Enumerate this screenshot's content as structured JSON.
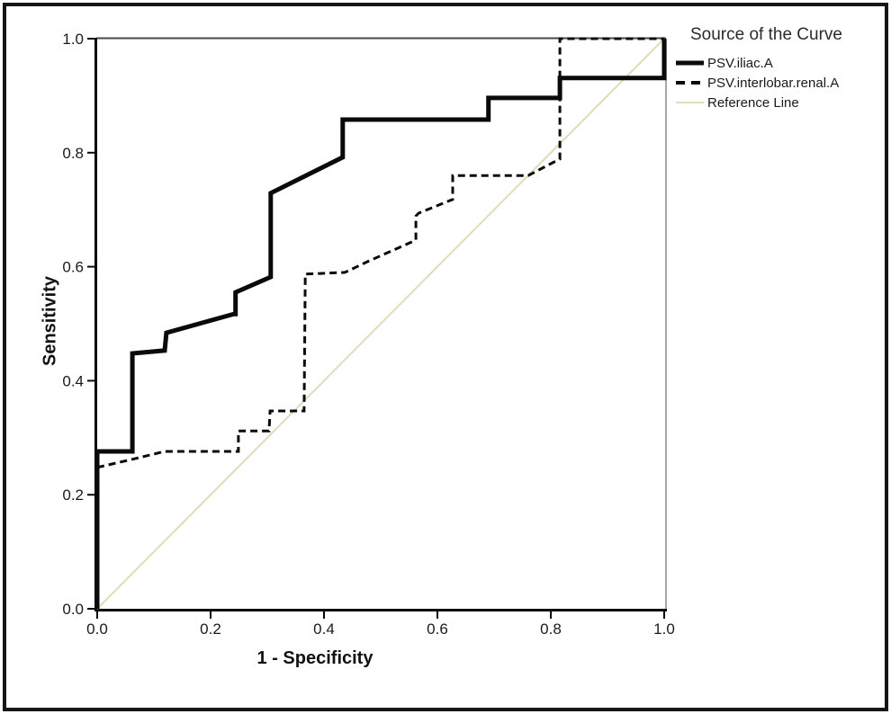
{
  "chart_data": {
    "type": "line",
    "subtype": "roc-curve",
    "xlabel": "1 - Specificity",
    "ylabel": "Sensitivity",
    "xlim": [
      0,
      1
    ],
    "ylim": [
      0,
      1
    ],
    "grid": "off",
    "x_ticks": [
      "0.0",
      "0.2",
      "0.4",
      "0.6",
      "0.8",
      "1.0"
    ],
    "y_ticks": [
      "0.0",
      "0.2",
      "0.4",
      "0.6",
      "0.8",
      "1.0"
    ],
    "legend": {
      "title": "Source of the Curve",
      "position": "top-right-outside",
      "entries": [
        {
          "label": "PSV.iliac.A",
          "style": "solid-thick",
          "color": "#0a0a0a"
        },
        {
          "label": "PSV.interlobar.renal.A",
          "style": "dashed",
          "color": "#0a0a0a"
        },
        {
          "label": "Reference Line",
          "style": "solid-thin",
          "color": "#e0dcb8"
        }
      ]
    },
    "series": [
      {
        "name": "Reference Line",
        "style": "solid-thin",
        "color": "#e0dcb8",
        "points": [
          [
            0,
            0
          ],
          [
            1,
            1
          ]
        ]
      },
      {
        "name": "PSV.interlobar.renal.A",
        "style": "dashed",
        "color": "#0a0a0a",
        "points": [
          [
            0,
            0.248
          ],
          [
            0.065,
            0.263
          ],
          [
            0.119,
            0.276
          ],
          [
            0.249,
            0.276
          ],
          [
            0.249,
            0.312
          ],
          [
            0.303,
            0.312
          ],
          [
            0.305,
            0.347
          ],
          [
            0.365,
            0.347
          ],
          [
            0.367,
            0.587
          ],
          [
            0.437,
            0.59
          ],
          [
            0.479,
            0.61
          ],
          [
            0.554,
            0.643
          ],
          [
            0.562,
            0.647
          ],
          [
            0.562,
            0.689
          ],
          [
            0.567,
            0.694
          ],
          [
            0.627,
            0.718
          ],
          [
            0.627,
            0.76
          ],
          [
            0.76,
            0.76
          ],
          [
            0.816,
            0.789
          ],
          [
            0.816,
            1
          ],
          [
            1,
            1
          ]
        ]
      },
      {
        "name": "PSV.iliac.A",
        "style": "solid-thick",
        "color": "#0a0a0a",
        "points": [
          [
            0,
            0
          ],
          [
            0,
            0.276
          ],
          [
            0.062,
            0.276
          ],
          [
            0.062,
            0.448
          ],
          [
            0.119,
            0.453
          ],
          [
            0.122,
            0.484
          ],
          [
            0.241,
            0.517
          ],
          [
            0.244,
            0.517
          ],
          [
            0.244,
            0.555
          ],
          [
            0.306,
            0.582
          ],
          [
            0.306,
            0.729
          ],
          [
            0.433,
            0.792
          ],
          [
            0.433,
            0.858
          ],
          [
            0.69,
            0.858
          ],
          [
            0.69,
            0.896
          ],
          [
            0.816,
            0.896
          ],
          [
            0.816,
            0.931
          ],
          [
            1,
            0.931
          ],
          [
            1,
            1
          ]
        ]
      }
    ]
  }
}
